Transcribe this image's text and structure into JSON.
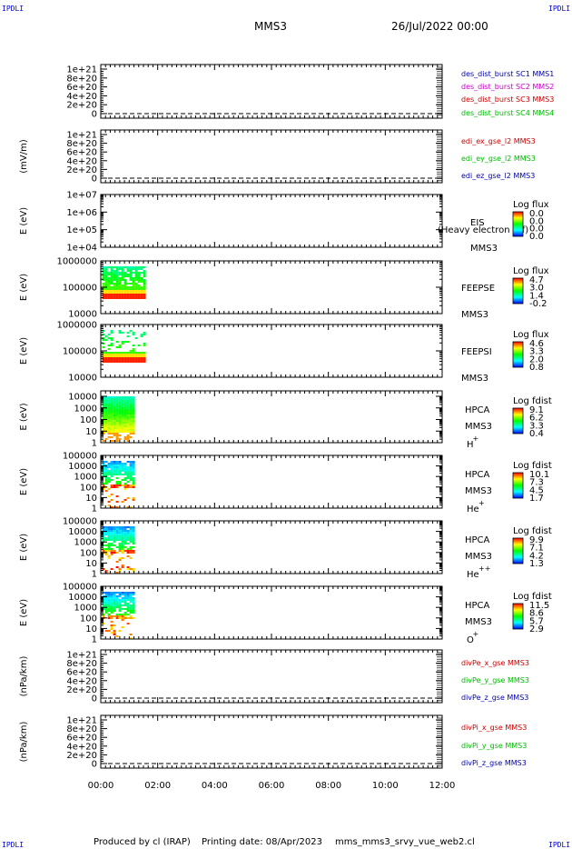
{
  "header": {
    "corner_text": "IPDLI",
    "spacecraft": "MMS3",
    "date": "26/Jul/2022 00:00"
  },
  "footer": {
    "produced_by": "Produced by cl (IRAP)",
    "printing_date": "Printing date: 08/Apr/2023",
    "filename": "mms_mms3_srvy_vue_web2.cl"
  },
  "colors": {
    "sc1": "#0000aa",
    "sc2": "#cc00cc",
    "sc3": "#cc0000",
    "sc4": "#00bb00",
    "x_component": "#cc0000",
    "y_component": "#00bb00",
    "z_component": "#0000aa"
  },
  "chart_data": {
    "type": "multi-panel time series",
    "x_axis": {
      "range": [
        "00:00",
        "12:00"
      ],
      "tick_labels": [
        "00:00",
        "02:00",
        "04:00",
        "06:00",
        "08:00",
        "10:00",
        "12:00"
      ]
    },
    "panels": [
      {
        "id": "des",
        "kind": "line",
        "ylabel": "",
        "ytick_labels": [
          "1e+21",
          "8e+20",
          "6e+20",
          "4e+20",
          "2e+20",
          "0"
        ],
        "ylim": [
          0,
          1e+21
        ],
        "zero_line": "dashed",
        "legend": [
          {
            "label": "des_dist_burst SC1 MMS1",
            "color": "#0000aa"
          },
          {
            "label": "des_dist_burst SC2 MMS2",
            "color": "#cc00cc"
          },
          {
            "label": "des_dist_burst SC3 MMS3",
            "color": "#cc0000"
          },
          {
            "label": "des_dist_burst SC4 MMS4",
            "color": "#00bb00"
          }
        ]
      },
      {
        "id": "edi",
        "kind": "line",
        "ylabel": "(mV/m)",
        "ytick_labels": [
          "1e+21",
          "8e+20",
          "6e+20",
          "4e+20",
          "2e+20",
          "0"
        ],
        "ylim": [
          0,
          1e+21
        ],
        "zero_line": "dashed",
        "legend": [
          {
            "label": "edi_ex_gse_l2 MMS3",
            "color": "#cc0000"
          },
          {
            "label": "edi_ey_gse_l2 MMS3",
            "color": "#00bb00"
          },
          {
            "label": "edi_ez_gse_l2 MMS3",
            "color": "#0000aa"
          }
        ]
      },
      {
        "id": "eis",
        "kind": "spectrogram",
        "ylabel": "E (eV)",
        "ytick_labels": [
          "1e+07",
          "1e+06",
          "1e+05",
          "1e+04"
        ],
        "yscale": "log",
        "ylim": [
          10000,
          10000000
        ],
        "right_labels": [
          "EIS",
          "MMS3"
        ],
        "overlay_label": "(Heavy electron tof)",
        "colorbar_title": "Log flux",
        "colorbar_values": [
          "0.0",
          "0.0",
          "0.0",
          "0.0"
        ],
        "data_extent": null
      },
      {
        "id": "feepse",
        "kind": "spectrogram",
        "ylabel": "E (eV)",
        "ytick_labels": [
          "1000000",
          "100000",
          "10000"
        ],
        "yscale": "log",
        "ylim": [
          10000,
          1000000
        ],
        "right_labels": [
          "FEEPSE",
          "MMS3"
        ],
        "colorbar_title": "Log flux",
        "colorbar_values": [
          "4.7",
          "3.0",
          "1.4",
          "-0.2"
        ],
        "data_extent": {
          "t_start_h": 0.05,
          "t_end_h": 1.55
        }
      },
      {
        "id": "feepsi",
        "kind": "spectrogram",
        "ylabel": "E (eV)",
        "ytick_labels": [
          "1000000",
          "100000",
          "10000"
        ],
        "yscale": "log",
        "ylim": [
          10000,
          1000000
        ],
        "right_labels": [
          "FEEPSI",
          "MMS3"
        ],
        "colorbar_title": "Log flux",
        "colorbar_values": [
          "4.6",
          "3.3",
          "2.0",
          "0.8"
        ],
        "data_extent": {
          "t_start_h": 0.05,
          "t_end_h": 1.55
        }
      },
      {
        "id": "hpca_h",
        "kind": "spectrogram",
        "ylabel": "E (eV)",
        "ytick_labels": [
          "10000",
          "1000",
          "100",
          "10",
          "1"
        ],
        "yscale": "log",
        "ylim": [
          1,
          40000
        ],
        "right_labels": [
          "HPCA",
          "MMS3"
        ],
        "species": "H",
        "species_charge": "+",
        "colorbar_title": "Log fdist",
        "colorbar_values": [
          "9.1",
          "6.2",
          "3.3",
          "0.4"
        ],
        "data_extent": {
          "t_start_h": 0.05,
          "t_end_h": 1.15
        }
      },
      {
        "id": "hpca_he",
        "kind": "spectrogram",
        "ylabel": "E (eV)",
        "ytick_labels": [
          "100000",
          "10000",
          "1000",
          "100",
          "10",
          "1"
        ],
        "yscale": "log",
        "ylim": [
          1,
          100000
        ],
        "right_labels": [
          "HPCA",
          "MMS3"
        ],
        "species": "He",
        "species_charge": "+",
        "colorbar_title": "Log fdist",
        "colorbar_values": [
          "10.1",
          "7.3",
          "4.5",
          "1.7"
        ],
        "data_extent": {
          "t_start_h": 0.05,
          "t_end_h": 1.15
        }
      },
      {
        "id": "hpca_he2",
        "kind": "spectrogram",
        "ylabel": "E (eV)",
        "ytick_labels": [
          "100000",
          "10000",
          "1000",
          "100",
          "10",
          "1"
        ],
        "yscale": "log",
        "ylim": [
          1,
          100000
        ],
        "right_labels": [
          "HPCA",
          "MMS3"
        ],
        "species": "He",
        "species_charge": "++",
        "colorbar_title": "Log fdist",
        "colorbar_values": [
          "9.9",
          "7.1",
          "4.2",
          "1.3"
        ],
        "data_extent": {
          "t_start_h": 0.05,
          "t_end_h": 1.15
        }
      },
      {
        "id": "hpca_o",
        "kind": "spectrogram",
        "ylabel": "E (eV)",
        "ytick_labels": [
          "100000",
          "10000",
          "1000",
          "100",
          "10",
          "1"
        ],
        "yscale": "log",
        "ylim": [
          1,
          100000
        ],
        "right_labels": [
          "HPCA",
          "MMS3"
        ],
        "species": "O",
        "species_charge": "+",
        "colorbar_title": "Log fdist",
        "colorbar_values": [
          "11.5",
          "8.6",
          "5.7",
          "2.9"
        ],
        "data_extent": {
          "t_start_h": 0.05,
          "t_end_h": 1.15
        }
      },
      {
        "id": "divpe",
        "kind": "line",
        "ylabel": "(nPa/km)",
        "ytick_labels": [
          "1e+21",
          "8e+20",
          "6e+20",
          "4e+20",
          "2e+20",
          "0"
        ],
        "ylim": [
          0,
          1e+21
        ],
        "zero_line": "dashed",
        "legend": [
          {
            "label": "divPe_x_gse MMS3",
            "color": "#cc0000"
          },
          {
            "label": "divPe_y_gse MMS3",
            "color": "#00bb00"
          },
          {
            "label": "divPe_z_gse MMS3",
            "color": "#0000aa"
          }
        ]
      },
      {
        "id": "divpi",
        "kind": "line",
        "ylabel": "(nPa/km)",
        "ytick_labels": [
          "1e+21",
          "8e+20",
          "6e+20",
          "4e+20",
          "2e+20",
          "0"
        ],
        "ylim": [
          0,
          1e+21
        ],
        "zero_line": "dashed",
        "legend": [
          {
            "label": "divPi_x_gse MMS3",
            "color": "#cc0000"
          },
          {
            "label": "divPi_y_gse MMS3",
            "color": "#00bb00"
          },
          {
            "label": "divPi_z_gse MMS3",
            "color": "#0000aa"
          }
        ]
      }
    ]
  }
}
